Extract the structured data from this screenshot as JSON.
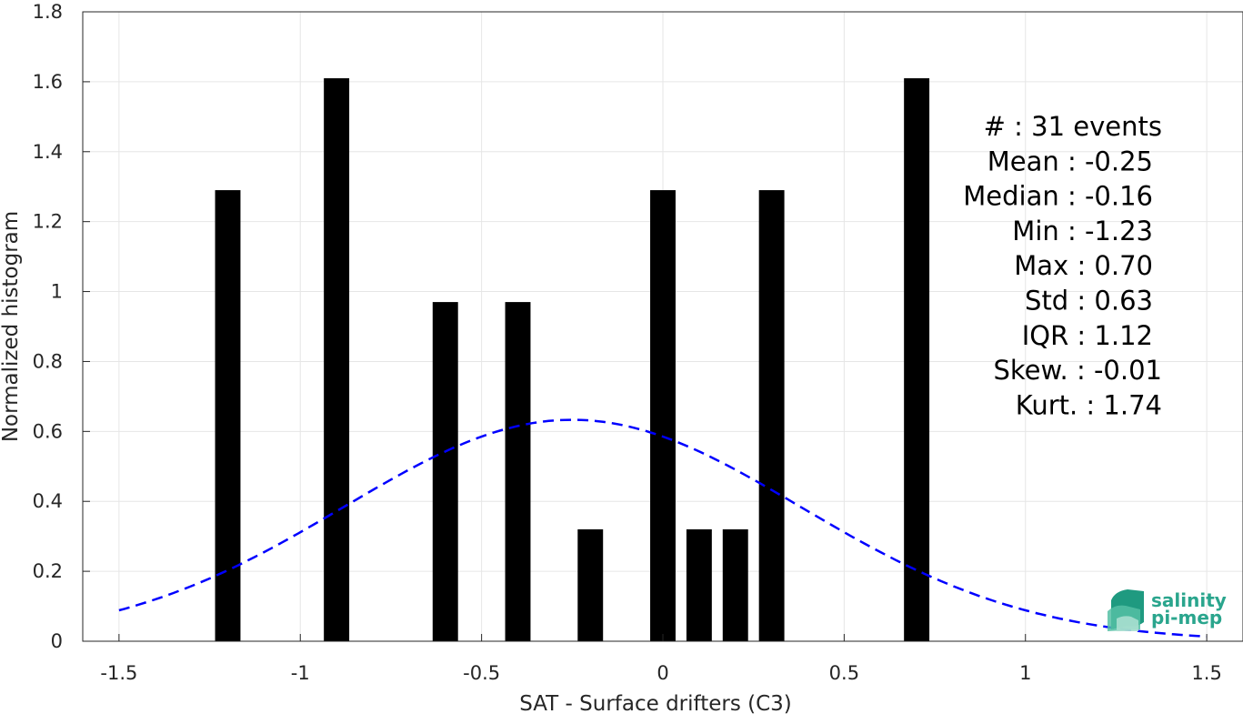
{
  "chart_data": {
    "type": "bar",
    "xlabel": "SAT - Surface drifters (C3)",
    "ylabel": "Normalized histogram",
    "xlim": [
      -1.6,
      1.6
    ],
    "ylim": [
      0,
      1.8
    ],
    "xticks": [
      -1.5,
      -1,
      -0.5,
      0,
      0.5,
      1,
      1.5
    ],
    "xtick_labels": [
      "-1.5",
      "-1",
      "-0.5",
      "0",
      "0.5",
      "1",
      "1.5"
    ],
    "yticks": [
      0,
      0.2,
      0.4,
      0.6,
      0.8,
      1,
      1.2,
      1.4,
      1.6,
      1.8
    ],
    "ytick_labels": [
      "0",
      "0.2",
      "0.4",
      "0.6",
      "0.8",
      "1",
      "1.2",
      "1.4",
      "1.6",
      "1.8"
    ],
    "grid": true,
    "bar_width": 0.07,
    "bar_color": "#000000",
    "bars": [
      {
        "x": -1.2,
        "value": 1.29
      },
      {
        "x": -0.9,
        "value": 1.61
      },
      {
        "x": -0.6,
        "value": 0.97
      },
      {
        "x": -0.4,
        "value": 0.97
      },
      {
        "x": -0.2,
        "value": 0.32
      },
      {
        "x": 0.0,
        "value": 1.29
      },
      {
        "x": 0.1,
        "value": 0.32
      },
      {
        "x": 0.2,
        "value": 0.32
      },
      {
        "x": 0.3,
        "value": 1.29
      },
      {
        "x": 0.7,
        "value": 1.61
      }
    ],
    "fit": {
      "type": "normal",
      "mean": -0.25,
      "std": 0.63,
      "x_range": [
        -1.5,
        1.5
      ],
      "color": "#0000ff",
      "style": "dashed"
    },
    "stats": [
      {
        "key": "#",
        "sep": " : ",
        "value": "31 events"
      },
      {
        "key": "Mean",
        "sep": " : ",
        "value": "-0.25"
      },
      {
        "key": "Median",
        "sep": " : ",
        "value": "-0.16"
      },
      {
        "key": "Min",
        "sep": " : ",
        "value": "-1.23"
      },
      {
        "key": "Max",
        "sep": " : ",
        "value": "0.70"
      },
      {
        "key": "Std",
        "sep": " : ",
        "value": "0.63"
      },
      {
        "key": "IQR",
        "sep": " : ",
        "value": "1.12"
      },
      {
        "key": "Skew.",
        "sep": " : ",
        "value": "-0.01"
      },
      {
        "key": "Kurt.",
        "sep": " : ",
        "value": "1.74"
      }
    ]
  },
  "logo": {
    "line1": "salinity",
    "line2": "pi-mep",
    "color": "#2aa58d"
  }
}
